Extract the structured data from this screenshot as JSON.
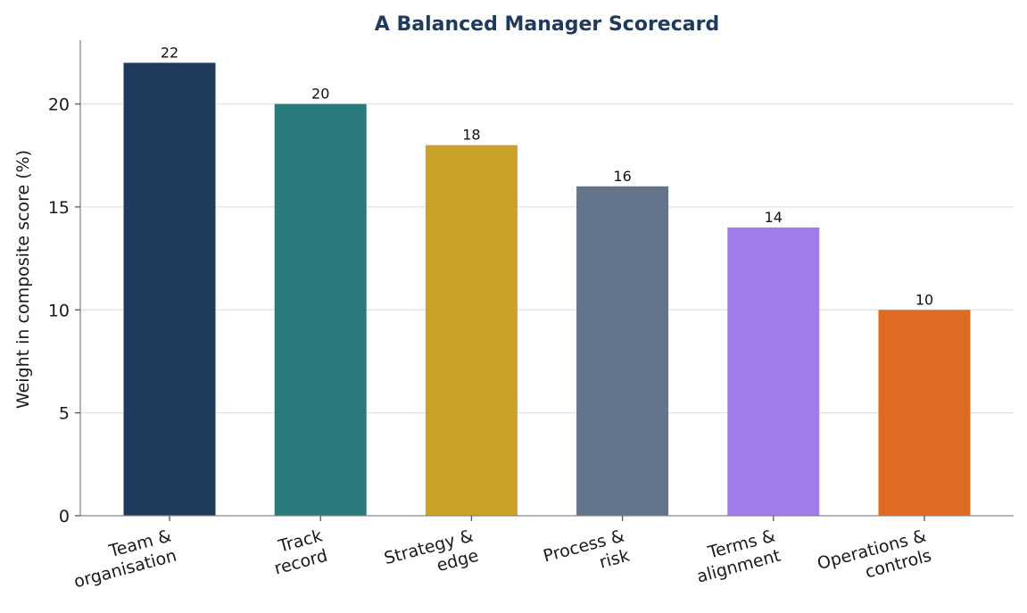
{
  "chart_data": {
    "type": "bar",
    "title": "A Balanced Manager Scorecard",
    "xlabel": "",
    "ylabel": "Weight in composite score (%)",
    "ylim": [
      0,
      23.1
    ],
    "yticks": [
      0,
      5,
      10,
      15,
      20
    ],
    "grid": true,
    "categories": [
      [
        "Team &",
        "organisation"
      ],
      [
        "Track",
        "record"
      ],
      [
        "Strategy &",
        "edge"
      ],
      [
        "Process &",
        "risk"
      ],
      [
        "Terms &",
        "alignment"
      ],
      [
        "Operations &",
        "controls"
      ]
    ],
    "values": [
      22,
      20,
      18,
      16,
      14,
      10
    ],
    "data_labels": [
      "22",
      "20",
      "18",
      "16",
      "14",
      "10"
    ],
    "colors": [
      "#1f3a5c",
      "#2a7a7b",
      "#c9a22a",
      "#64748b",
      "#a07ce8",
      "#dd6c22"
    ]
  }
}
